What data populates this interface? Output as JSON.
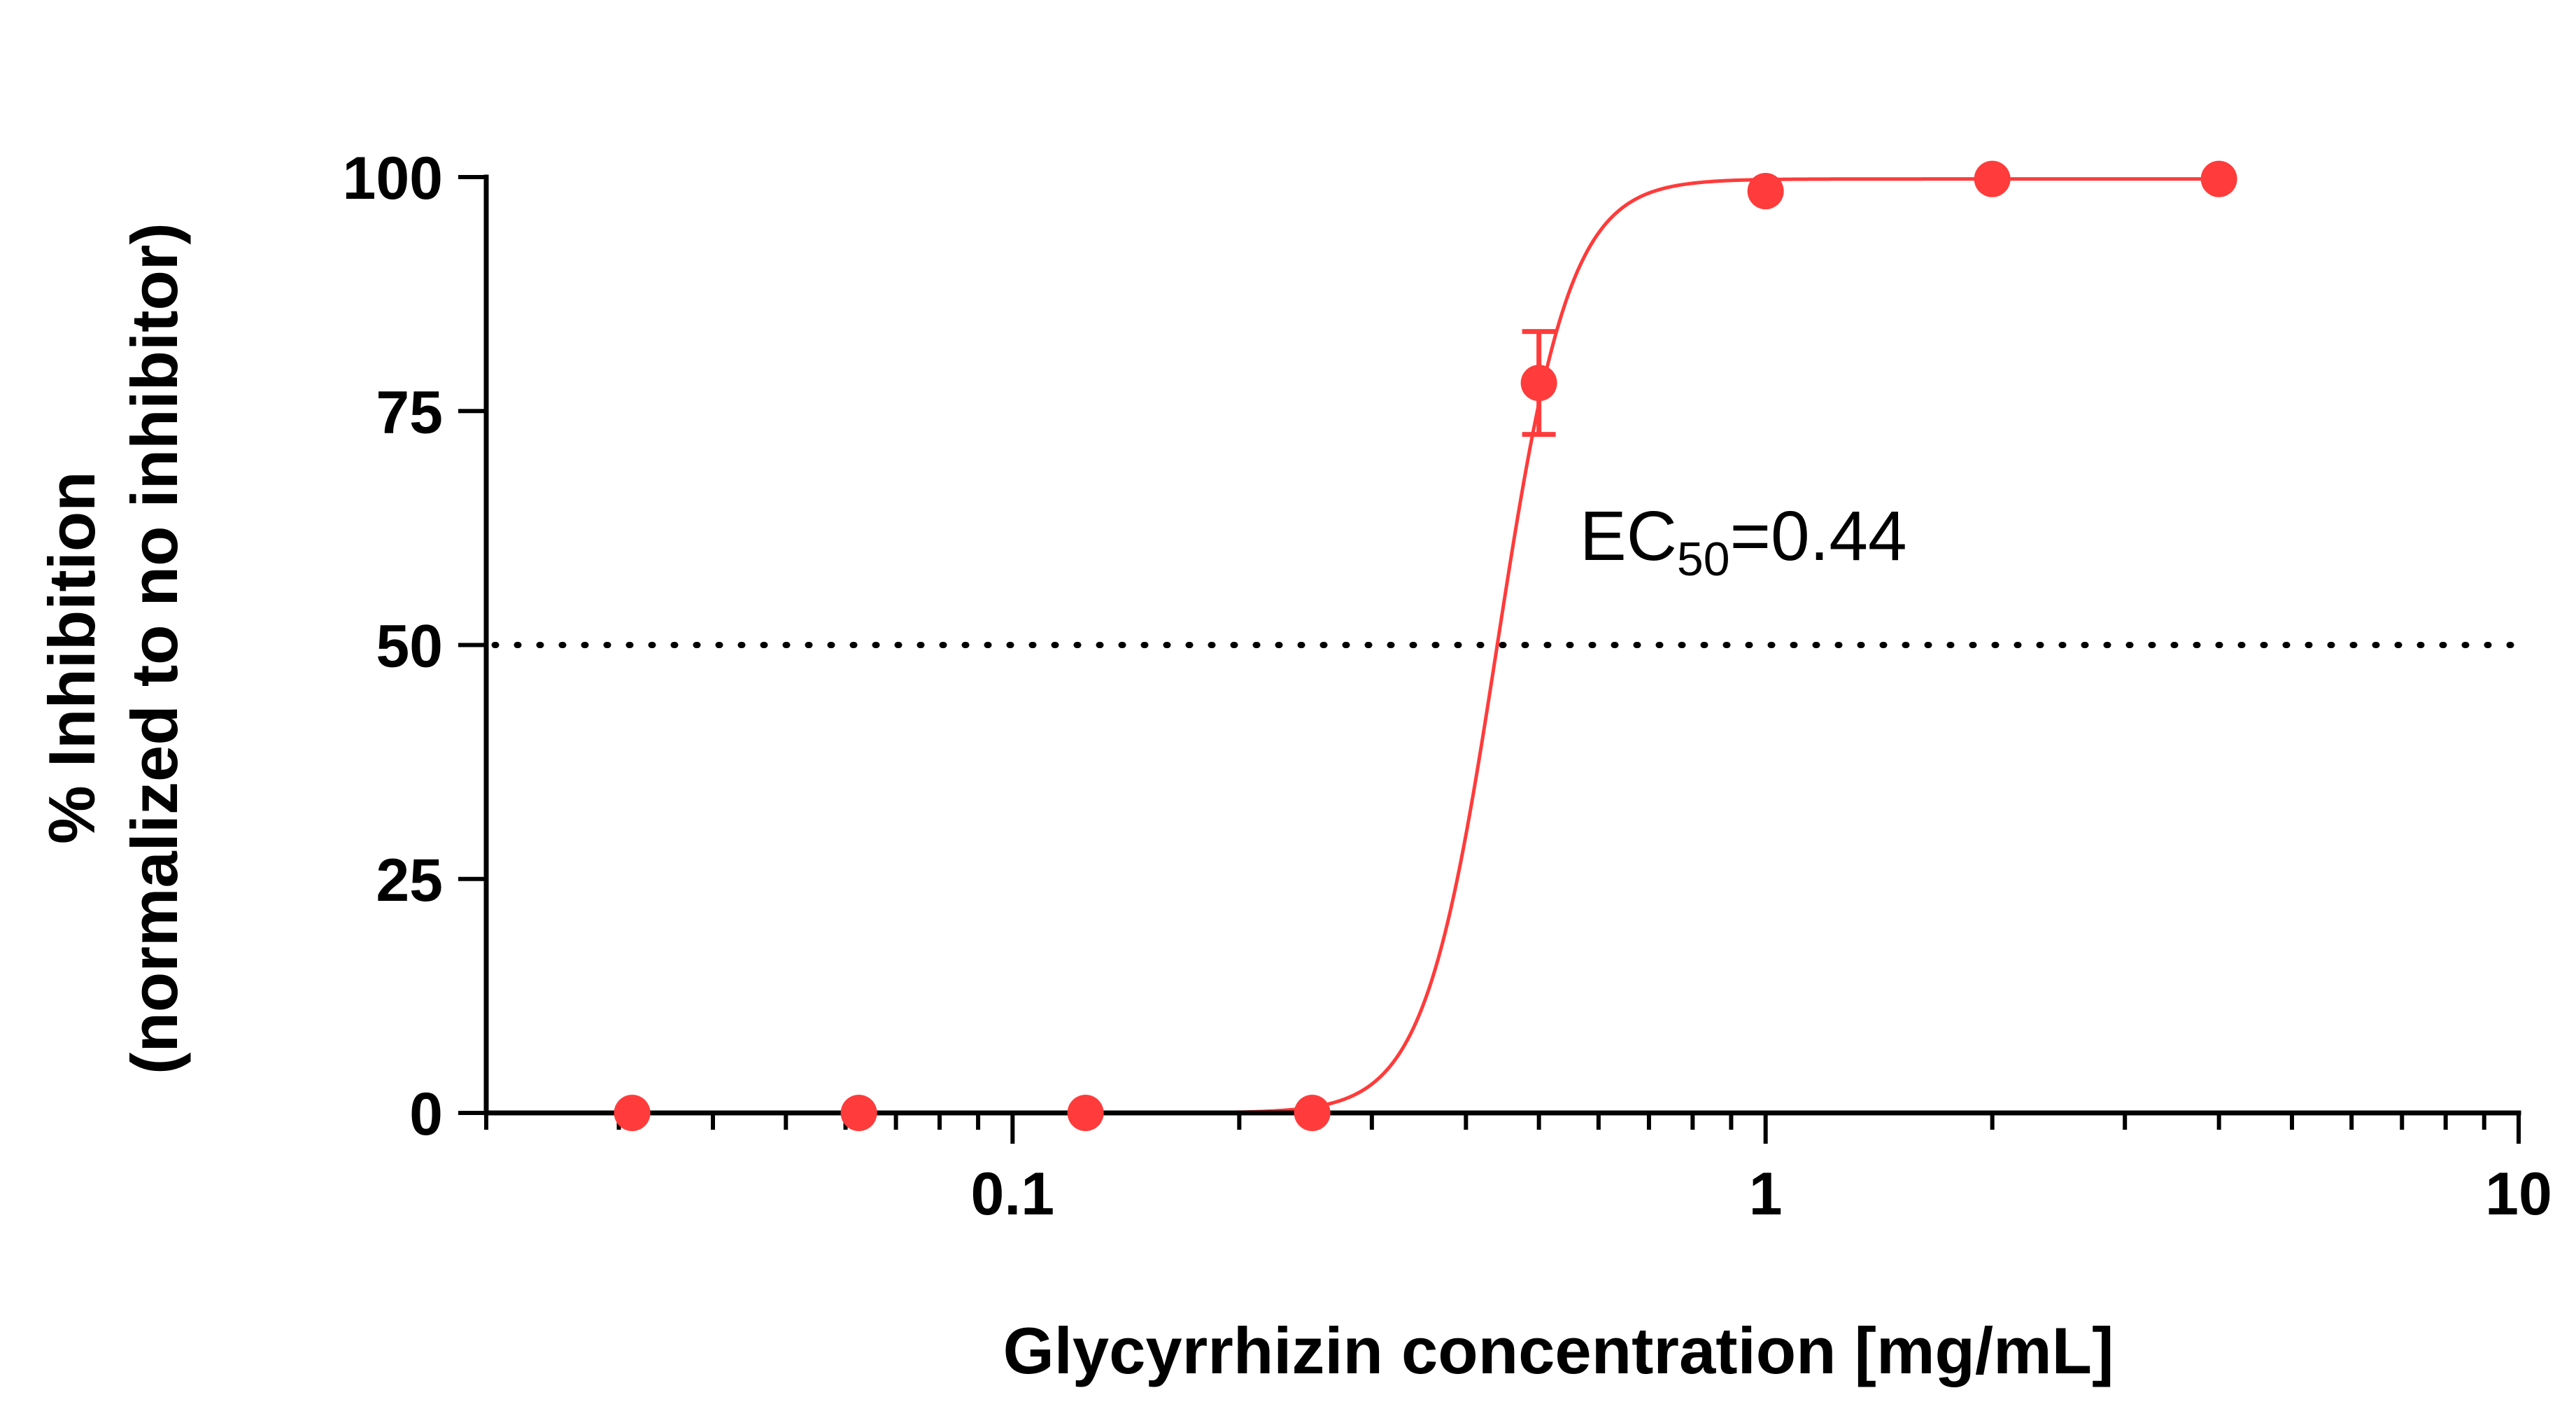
{
  "chart_data": {
    "type": "scatter",
    "xlabel": "Glycyrrhizin concentration [mg/mL]",
    "ylabel_line1": "% Inhibition",
    "ylabel_line2": "(normalized to no inhibitor)",
    "x_scale": "log",
    "xlim": [
      0.02,
      10
    ],
    "ylim": [
      0,
      100
    ],
    "x_major_ticks": [
      0.1,
      1,
      10
    ],
    "x_tick_labels": [
      "0.1",
      "1",
      "10"
    ],
    "y_ticks": [
      0,
      25,
      50,
      75,
      100
    ],
    "y_tick_labels": [
      "0",
      "25",
      "50",
      "75",
      "100"
    ],
    "grid": false,
    "reference_line": {
      "y": 50,
      "style": "dotted"
    },
    "series": [
      {
        "x": [
          0.03125,
          0.0625,
          0.125,
          0.25,
          0.5,
          1,
          2,
          4
        ],
        "y": [
          0,
          0,
          0,
          0,
          78,
          98.5,
          99.8,
          99.8
        ],
        "yerr": [
          0,
          0,
          0,
          0,
          5.5,
          0,
          0,
          0
        ],
        "color": "#ff3b3b"
      }
    ],
    "fit": {
      "model": "four-parameter logistic",
      "bottom": 0,
      "top": 99.8,
      "ec50": 0.44,
      "hill": 9,
      "color": "#ff3b3b"
    },
    "annotation": {
      "main": "EC",
      "sub": "50",
      "value": "=0.44"
    }
  }
}
